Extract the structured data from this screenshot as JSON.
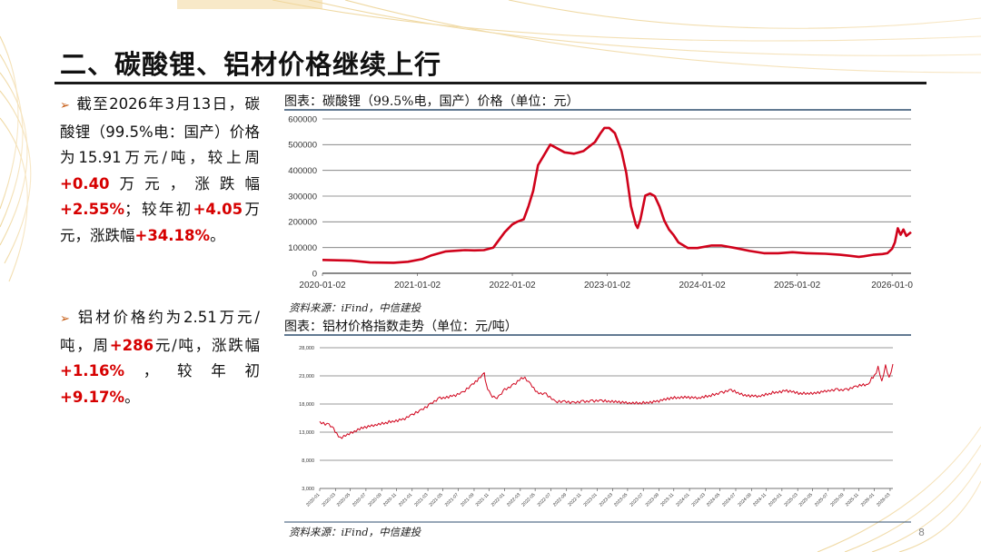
{
  "slide": {
    "title": "二、碳酸锂、铝材价格继续上行",
    "page_number": "8"
  },
  "bullets": [
    {
      "segments": [
        {
          "text": "截至2026年3月13日，碳酸锂（99.5%电：国产）价格为15.91万元/吨，较上周",
          "hl": false
        },
        {
          "text": "+0.40",
          "hl": true
        },
        {
          "text": "万元，涨跌幅",
          "hl": false
        },
        {
          "text": "+2.55%",
          "hl": true
        },
        {
          "text": "；较年初",
          "hl": false
        },
        {
          "text": "+4.05",
          "hl": true
        },
        {
          "text": "万元，涨跌幅",
          "hl": false
        },
        {
          "text": "+34.18%",
          "hl": true
        },
        {
          "text": "。",
          "hl": false
        }
      ]
    },
    {
      "segments": [
        {
          "text": "铝材价格约为2.51万元/吨，周",
          "hl": false
        },
        {
          "text": "+286",
          "hl": true
        },
        {
          "text": "元/吨，涨跌幅",
          "hl": false
        },
        {
          "text": "+1.16%",
          "hl": true
        },
        {
          "text": "，较年初",
          "hl": false
        },
        {
          "text": "+9.17%",
          "hl": true
        },
        {
          "text": "。",
          "hl": false
        }
      ]
    }
  ],
  "sources": {
    "top": "资料来源：iFind，中信建投",
    "bottom": "资料来源：iFind，中信建投"
  },
  "colors": {
    "line": "#d0021b",
    "frame": "#2f4f6f",
    "grid": "#777777",
    "highlight": "#d60000",
    "arrow": "#c55a11"
  },
  "chart_data": [
    {
      "type": "line",
      "title": "图表：碳酸锂（99.5%电，国产）价格（单位：元）",
      "ylim": [
        0,
        600000
      ],
      "y_ticks": [
        0,
        100000,
        200000,
        300000,
        400000,
        500000,
        600000
      ],
      "y_tick_labels": [
        "0",
        "100000",
        "200000",
        "300000",
        "400000",
        "500000",
        "600000"
      ],
      "xlim": [
        2020.0,
        2026.2
      ],
      "x_ticks": [
        2020.0,
        2021.0,
        2022.0,
        2023.0,
        2024.0,
        2025.0,
        2026.0
      ],
      "x_tick_labels": [
        "2020-01-02",
        "2021-01-02",
        "2022-01-02",
        "2023-01-02",
        "2024-01-02",
        "2025-01-02",
        "2026-01-0"
      ],
      "grid": true,
      "series": [
        {
          "x": [
            2020.0,
            2020.3,
            2020.5,
            2020.75,
            2020.9,
            2021.05,
            2021.15,
            2021.3,
            2021.5,
            2021.6,
            2021.7,
            2021.8,
            2021.92,
            2022.0,
            2022.05,
            2022.12,
            2022.17,
            2022.22,
            2022.27,
            2022.4,
            2022.55,
            2022.65,
            2022.75,
            2022.8,
            2022.87,
            2022.93,
            2022.97,
            2023.02,
            2023.08,
            2023.15,
            2023.2,
            2023.25,
            2023.3,
            2023.32,
            2023.35,
            2023.4,
            2023.45,
            2023.5,
            2023.55,
            2023.6,
            2023.65,
            2023.7,
            2023.75,
            2023.85,
            2023.95,
            2024.1,
            2024.2,
            2024.35,
            2024.5,
            2024.65,
            2024.8,
            2024.95,
            2025.1,
            2025.3,
            2025.45,
            2025.55,
            2025.65,
            2025.7,
            2025.8,
            2025.9,
            2025.95,
            2026.0,
            2026.03,
            2026.06,
            2026.09,
            2026.12,
            2026.15,
            2026.2
          ],
          "values": [
            52000,
            49000,
            42000,
            41000,
            45000,
            55000,
            70000,
            85000,
            90000,
            89000,
            90000,
            100000,
            160000,
            190000,
            200000,
            210000,
            260000,
            320000,
            420000,
            500000,
            470000,
            465000,
            475000,
            490000,
            510000,
            545000,
            565000,
            565000,
            545000,
            475000,
            390000,
            260000,
            190000,
            176000,
            210000,
            302000,
            310000,
            300000,
            260000,
            205000,
            170000,
            148000,
            120000,
            98000,
            98000,
            108000,
            108000,
            98000,
            87000,
            78000,
            78000,
            82000,
            78000,
            76000,
            72000,
            68000,
            64000,
            66000,
            72000,
            75000,
            78000,
            95000,
            120000,
            175000,
            150000,
            170000,
            145000,
            160000
          ]
        }
      ]
    },
    {
      "type": "line",
      "title": "图表：铝材价格指数走势（单位：元/吨）",
      "ylim": [
        3000,
        28000
      ],
      "y_ticks": [
        3000,
        8000,
        13000,
        18000,
        23000,
        28000
      ],
      "y_tick_labels": [
        "3,000",
        "8,000",
        "13,000",
        "18,000",
        "23,000",
        "28,000"
      ],
      "xlim": [
        2020.0,
        2026.2
      ],
      "x_ticks": [
        2020.0,
        2020.17,
        2020.33,
        2020.5,
        2020.67,
        2020.83,
        2021.0,
        2021.17,
        2021.33,
        2021.5,
        2021.67,
        2021.83,
        2022.0,
        2022.17,
        2022.33,
        2022.5,
        2022.67,
        2022.83,
        2023.0,
        2023.17,
        2023.33,
        2023.5,
        2023.67,
        2023.83,
        2024.0,
        2024.17,
        2024.33,
        2024.5,
        2024.67,
        2024.83,
        2025.0,
        2025.17,
        2025.33,
        2025.5,
        2025.67,
        2025.83,
        2026.0,
        2026.17
      ],
      "x_tick_labels": [
        "2020-01",
        "2020-03",
        "2020-05",
        "2020-07",
        "2020-09",
        "2020-11",
        "2021-01",
        "2021-03",
        "2021-05",
        "2021-07",
        "2021-09",
        "2021-11",
        "2022-01",
        "2022-03",
        "2022-05",
        "2022-07",
        "2022-09",
        "2022-11",
        "2023-01",
        "2023-03",
        "2023-05",
        "2023-07",
        "2023-09",
        "2023-11",
        "2024-01",
        "2024-03",
        "2024-05",
        "2024-07",
        "2024-09",
        "2024-11",
        "2025-01",
        "2025-03",
        "2025-05",
        "2025-07",
        "2025-09",
        "2025-11",
        "2026-01",
        "2026-03"
      ],
      "grid": true,
      "series": [
        {
          "x": [
            2020.0,
            2020.1,
            2020.15,
            2020.22,
            2020.3,
            2020.45,
            2020.6,
            2020.75,
            2020.9,
            2021.0,
            2021.1,
            2021.2,
            2021.3,
            2021.45,
            2021.55,
            2021.65,
            2021.72,
            2021.78,
            2021.8,
            2021.85,
            2021.9,
            2021.95,
            2022.0,
            2022.1,
            2022.18,
            2022.22,
            2022.28,
            2022.35,
            2022.45,
            2022.55,
            2022.65,
            2022.75,
            2022.85,
            2022.95,
            2023.05,
            2023.2,
            2023.35,
            2023.5,
            2023.65,
            2023.8,
            2023.95,
            2024.1,
            2024.25,
            2024.35,
            2024.45,
            2024.6,
            2024.75,
            2024.9,
            2025.05,
            2025.2,
            2025.35,
            2025.5,
            2025.6,
            2025.7,
            2025.8,
            2025.88,
            2025.93,
            2025.97,
            2026.0,
            2026.04,
            2026.08,
            2026.12,
            2026.16,
            2026.2
          ],
          "values": [
            14800,
            14300,
            13500,
            12000,
            12500,
            13800,
            14200,
            14800,
            15300,
            16000,
            17000,
            18000,
            19000,
            19500,
            20000,
            21500,
            22500,
            23300,
            21500,
            19500,
            19000,
            19500,
            20500,
            21500,
            22500,
            22700,
            21500,
            20000,
            19800,
            18300,
            18500,
            18200,
            18400,
            18600,
            18500,
            18500,
            18100,
            18200,
            18500,
            19000,
            19300,
            19000,
            19600,
            20100,
            20400,
            19600,
            19300,
            20000,
            20400,
            19800,
            20000,
            20300,
            20500,
            20600,
            21000,
            21500,
            21300,
            22500,
            23000,
            24500,
            22000,
            24800,
            22500,
            25100
          ]
        }
      ]
    }
  ]
}
